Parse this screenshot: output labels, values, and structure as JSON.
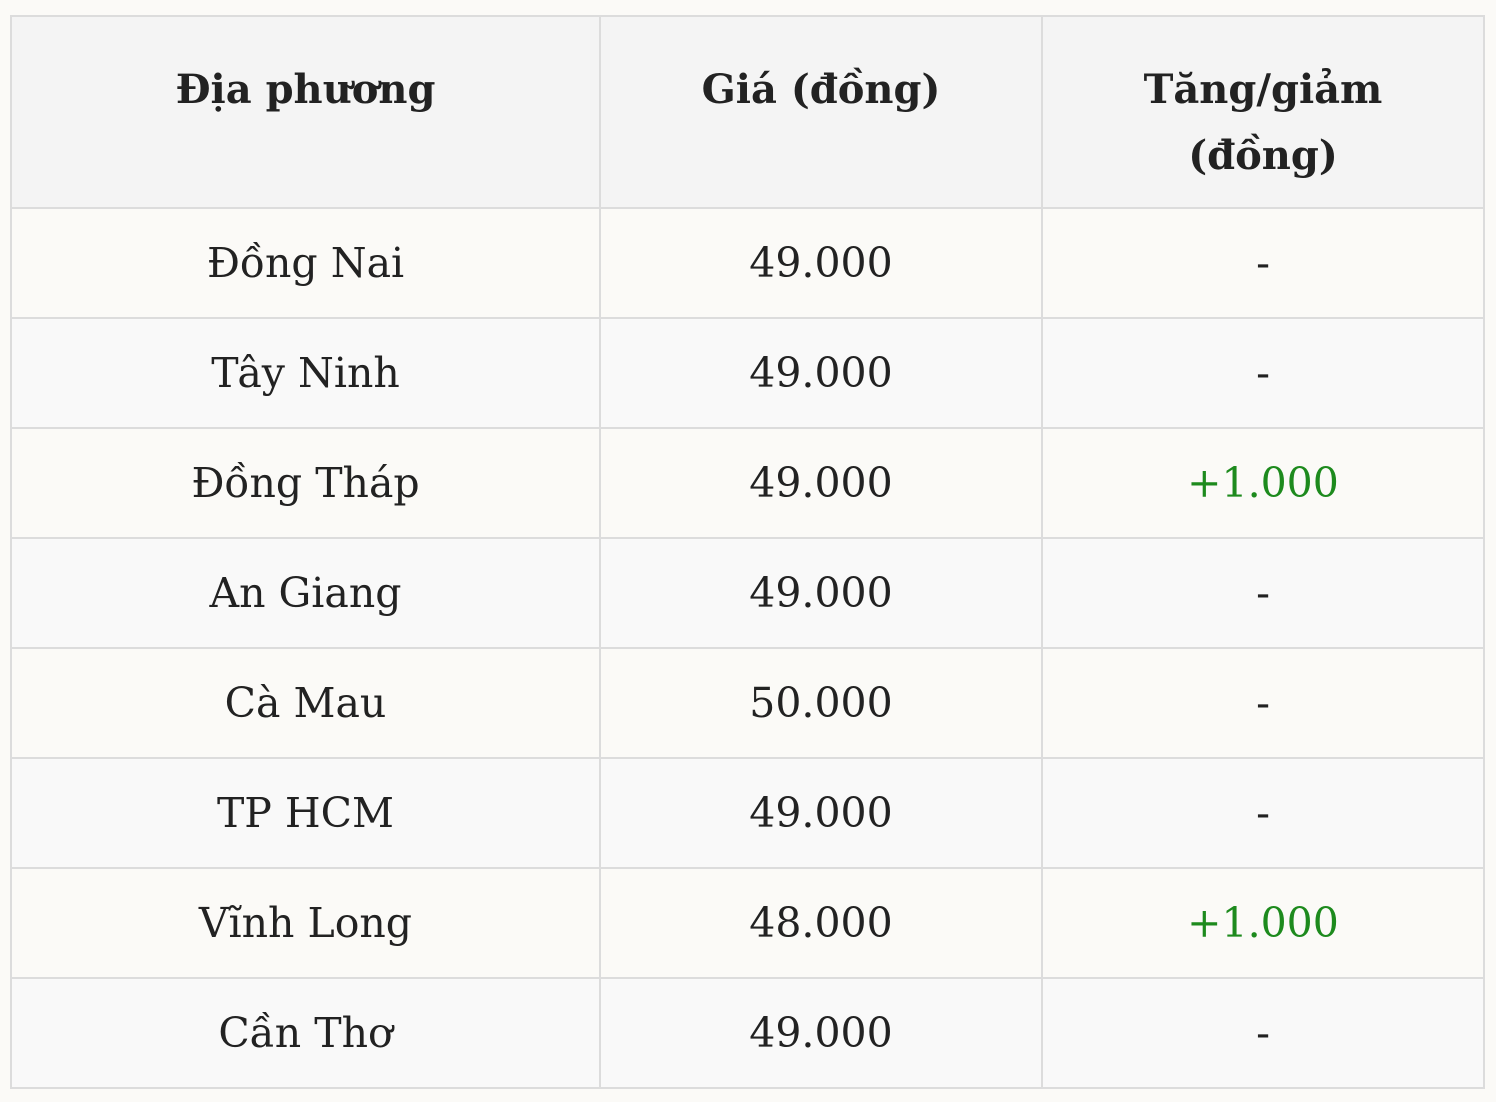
{
  "table": {
    "headers": [
      "Địa phương",
      "Giá (đồng)",
      "Tăng/giảm (đồng)"
    ],
    "rows": [
      {
        "location": "Đồng Nai",
        "price": "49.000",
        "change": "-"
      },
      {
        "location": "Tây Ninh",
        "price": "49.000",
        "change": "-"
      },
      {
        "location": "Đồng Tháp",
        "price": "49.000",
        "change": "+1.000"
      },
      {
        "location": "An Giang",
        "price": "49.000",
        "change": "-"
      },
      {
        "location": "Cà Mau",
        "price": "50.000",
        "change": "-"
      },
      {
        "location": "TP HCM",
        "price": "49.000",
        "change": "-"
      },
      {
        "location": "Vĩnh Long",
        "price": "48.000",
        "change": "+1.000"
      },
      {
        "location": "Cần Thơ",
        "price": "49.000",
        "change": "-"
      }
    ]
  },
  "colors": {
    "increase": "#1d8a1d",
    "header_bg": "#f4f4f4",
    "border": "#dcdcdc"
  }
}
